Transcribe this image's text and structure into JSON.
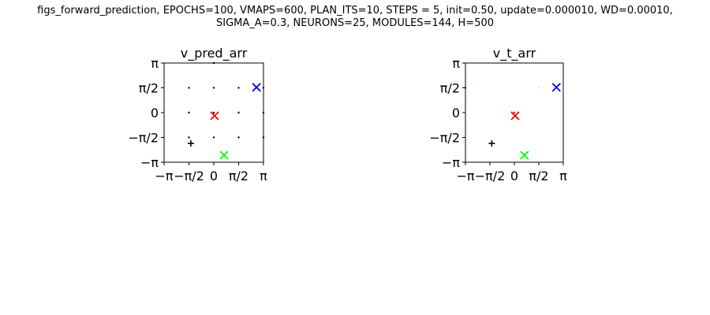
{
  "suptitle": {
    "line1": "figs_forward_prediction, EPOCHS=100, VMAPS=600, PLAN_ITS=10, STEPS = 5, init=0.50, update=0.000010, WD=0.00010,",
    "line2": "SIGMA_A=0.3, NEURONS=25, MODULES=144, H=500"
  },
  "colors": {
    "red": "#ff0000",
    "green": "#00ff00",
    "blue": "#0000cc",
    "black": "#000000"
  },
  "chart_data": [
    {
      "type": "scatter",
      "title": "v_pred_arr",
      "xlim": [
        -3.1416,
        3.1416
      ],
      "ylim": [
        -3.1416,
        3.1416
      ],
      "xticks": [
        -3.1416,
        -1.5708,
        0,
        1.5708,
        3.1416
      ],
      "xticklabels": [
        "−π",
        "−π/2",
        "0",
        "π/2",
        "π"
      ],
      "yticks": [
        -3.1416,
        -1.5708,
        0,
        1.5708,
        3.1416
      ],
      "yticklabels": [
        "−π",
        "−π/2",
        "0",
        "π/2",
        "π"
      ],
      "grid": false,
      "series": [
        {
          "marker": "dot",
          "color": "#000000",
          "points": [
            [
              -1.5708,
              1.5708
            ],
            [
              0,
              1.5708
            ],
            [
              1.5708,
              1.5708
            ],
            [
              3.1416,
              1.5708
            ],
            [
              -1.5708,
              0
            ],
            [
              0,
              0
            ],
            [
              1.5708,
              0
            ],
            [
              3.1416,
              0
            ],
            [
              -1.5708,
              -1.5708
            ],
            [
              0,
              -1.5708
            ],
            [
              1.5708,
              -1.5708
            ],
            [
              3.1416,
              -1.5708
            ],
            [
              0,
              3.1416
            ]
          ]
        },
        {
          "marker": "plus",
          "color": "#000000",
          "points": [
            [
              -1.45,
              -1.95
            ]
          ]
        },
        {
          "marker": "x",
          "color": "#ff0000",
          "points": [
            [
              0.05,
              -0.2
            ]
          ]
        },
        {
          "marker": "x",
          "color": "#0000cc",
          "points": [
            [
              2.7,
              1.6
            ]
          ]
        },
        {
          "marker": "x",
          "color": "#00ff00",
          "points": [
            [
              0.65,
              -2.7
            ]
          ]
        }
      ]
    },
    {
      "type": "scatter",
      "title": "v_t_arr",
      "xlim": [
        -3.1416,
        3.1416
      ],
      "ylim": [
        -3.1416,
        3.1416
      ],
      "xticks": [
        -3.1416,
        -1.5708,
        0,
        1.5708,
        3.1416
      ],
      "xticklabels": [
        "−π",
        "−π/2",
        "0",
        "π/2",
        "π"
      ],
      "yticks": [
        -3.1416,
        -1.5708,
        0,
        1.5708,
        3.1416
      ],
      "yticklabels": [
        "−π",
        "−π/2",
        "0",
        "π/2",
        "π"
      ],
      "grid": false,
      "series": [
        {
          "marker": "dot",
          "color": "#0000cc",
          "points": [
            [
              -3.1416,
              1.5708
            ]
          ]
        },
        {
          "marker": "dot",
          "color": "#ff0000",
          "points": [
            [
              0,
              0
            ]
          ]
        },
        {
          "marker": "dot",
          "color": "#dddddd",
          "points": [
            [
              1.5708,
              1.5708
            ]
          ]
        },
        {
          "marker": "plus",
          "color": "#000000",
          "points": [
            [
              -1.45,
              -1.95
            ]
          ]
        },
        {
          "marker": "x",
          "color": "#ff0000",
          "points": [
            [
              0.05,
              -0.2
            ]
          ]
        },
        {
          "marker": "x",
          "color": "#0000cc",
          "points": [
            [
              2.7,
              1.6
            ]
          ]
        },
        {
          "marker": "x",
          "color": "#00ff00",
          "points": [
            [
              0.65,
              -2.7
            ]
          ]
        }
      ]
    }
  ]
}
